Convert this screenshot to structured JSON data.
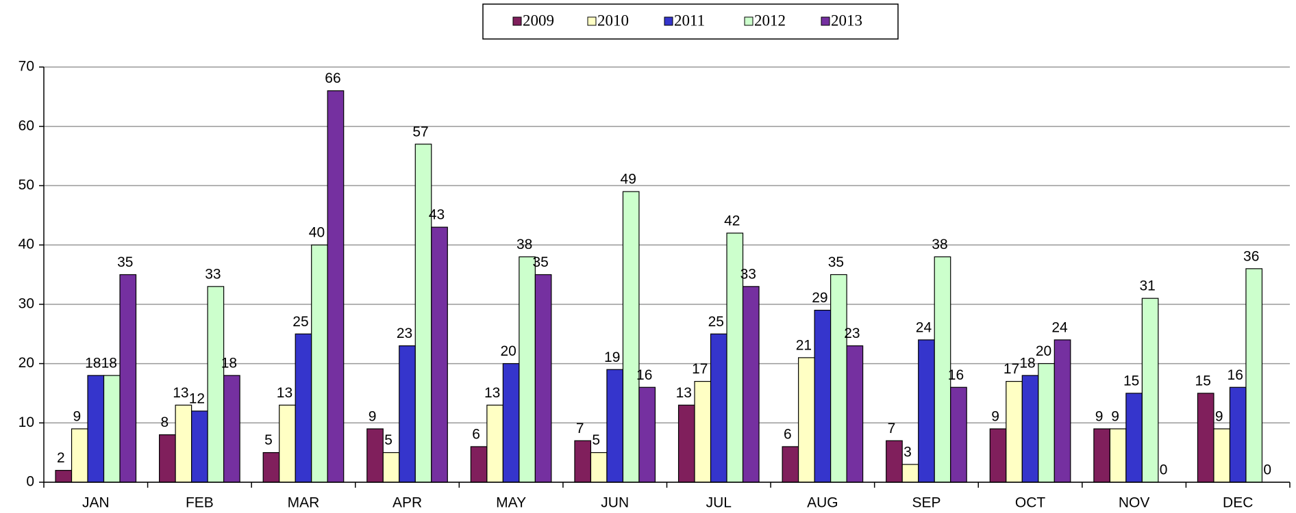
{
  "chart_data": {
    "type": "bar",
    "categories": [
      "JAN",
      "FEB",
      "MAR",
      "APR",
      "MAY",
      "JUN",
      "JUL",
      "AUG",
      "SEP",
      "OCT",
      "NOV",
      "DEC"
    ],
    "series": [
      {
        "name": "2009",
        "color": "#801f5c",
        "values": [
          2,
          8,
          5,
          9,
          6,
          7,
          13,
          6,
          7,
          9,
          9,
          15
        ]
      },
      {
        "name": "2010",
        "color": "#ffffc4",
        "values": [
          9,
          13,
          13,
          5,
          13,
          5,
          17,
          21,
          3,
          17,
          9,
          9
        ]
      },
      {
        "name": "2011",
        "color": "#3535cc",
        "values": [
          18,
          12,
          25,
          23,
          20,
          19,
          25,
          29,
          24,
          18,
          15,
          16
        ]
      },
      {
        "name": "2012",
        "color": "#ccffcc",
        "values": [
          18,
          33,
          40,
          57,
          38,
          49,
          42,
          35,
          38,
          20,
          31,
          36
        ]
      },
      {
        "name": "2013",
        "color": "#7530a0",
        "values": [
          35,
          18,
          66,
          43,
          35,
          16,
          33,
          23,
          16,
          24,
          0,
          0
        ]
      }
    ],
    "ylim": [
      0,
      70
    ],
    "yticks": [
      0,
      10,
      20,
      30,
      40,
      50,
      60,
      70
    ],
    "grid": true,
    "legend": "top"
  }
}
